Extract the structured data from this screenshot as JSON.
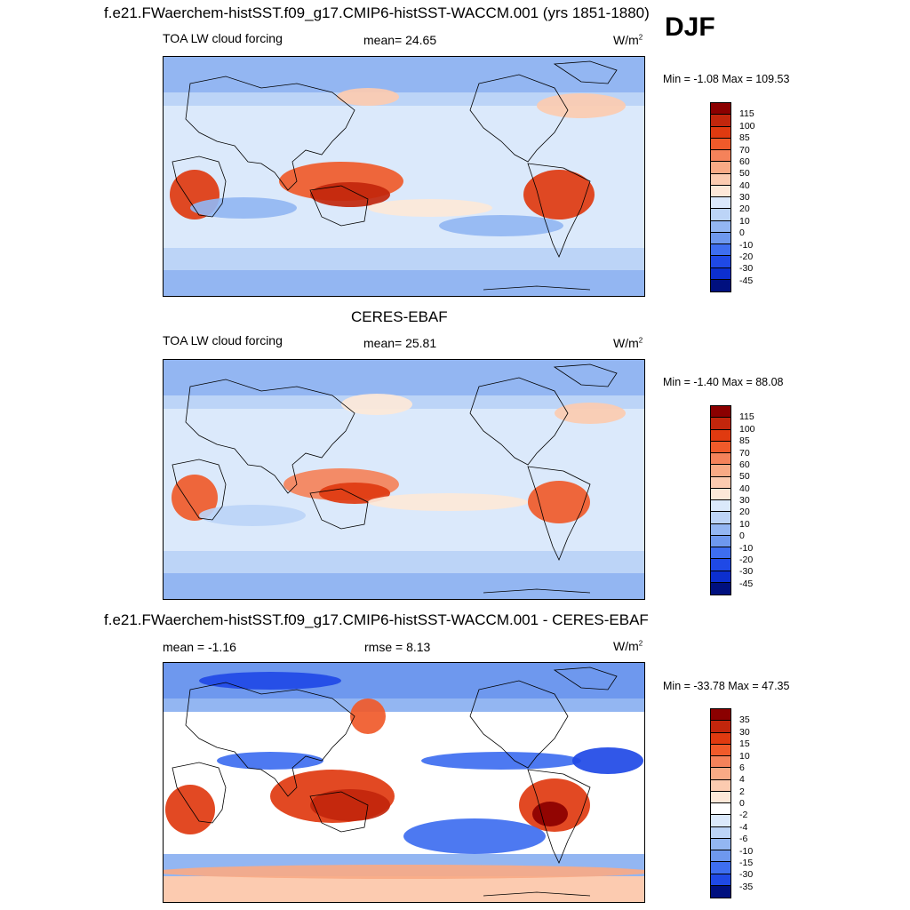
{
  "header": {
    "title": "f.e21.FWaerchem-histSST.f09_g17.CMIP6-histSST-WACCM.001 (yrs 1851-1880)",
    "season": "DJF"
  },
  "panels": [
    {
      "id": "model",
      "title": "",
      "left_label": "TOA LW cloud forcing",
      "center_label": "mean=  24.65",
      "units": "W/m",
      "units_sup": "2",
      "minmax": "Min =  -1.08 Max = 109.53",
      "colorbar_labels": [
        "115",
        "100",
        "85",
        "70",
        "60",
        "50",
        "40",
        "30",
        "20",
        "10",
        "0",
        "-10",
        "-20",
        "-30",
        "-45"
      ]
    },
    {
      "id": "obs",
      "title": "CERES-EBAF",
      "left_label": "TOA LW cloud forcing",
      "center_label": "mean=  25.81",
      "units": "W/m",
      "units_sup": "2",
      "minmax": "Min =  -1.40 Max =  88.08",
      "colorbar_labels": [
        "115",
        "100",
        "85",
        "70",
        "60",
        "50",
        "40",
        "30",
        "20",
        "10",
        "0",
        "-10",
        "-20",
        "-30",
        "-45"
      ]
    },
    {
      "id": "diff",
      "title": "f.e21.FWaerchem-histSST.f09_g17.CMIP6-histSST-WACCM.001 - CERES-EBAF",
      "left_label": "mean =  -1.16",
      "center_label": "rmse =    8.13",
      "units": "W/m",
      "units_sup": "2",
      "minmax": "Min = -33.78 Max =  47.35",
      "colorbar_labels": [
        "35",
        "30",
        "15",
        "10",
        "6",
        "4",
        "2",
        "0",
        "-2",
        "-4",
        "-6",
        "-10",
        "-15",
        "-30",
        "-35"
      ]
    }
  ],
  "colors": {
    "abs_scale": [
      "#8b0000",
      "#c2260c",
      "#e03a10",
      "#f05a2a",
      "#f5825a",
      "#f9aa85",
      "#fccbb0",
      "#fde8d8",
      "#dbe9fb",
      "#bcd4f7",
      "#93b6f2",
      "#6e98ee",
      "#3e6ef0",
      "#1f49e6",
      "#0c2fcf",
      "#00107f"
    ],
    "diff_scale": [
      "#8b0000",
      "#c2260c",
      "#e03a10",
      "#f05a2a",
      "#f5825a",
      "#f9aa85",
      "#fccbb0",
      "#fde8d8",
      "#ffffff",
      "#dbe9fb",
      "#bcd4f7",
      "#93b6f2",
      "#6e98ee",
      "#3e6ef0",
      "#1f49e6",
      "#00107f"
    ]
  }
}
